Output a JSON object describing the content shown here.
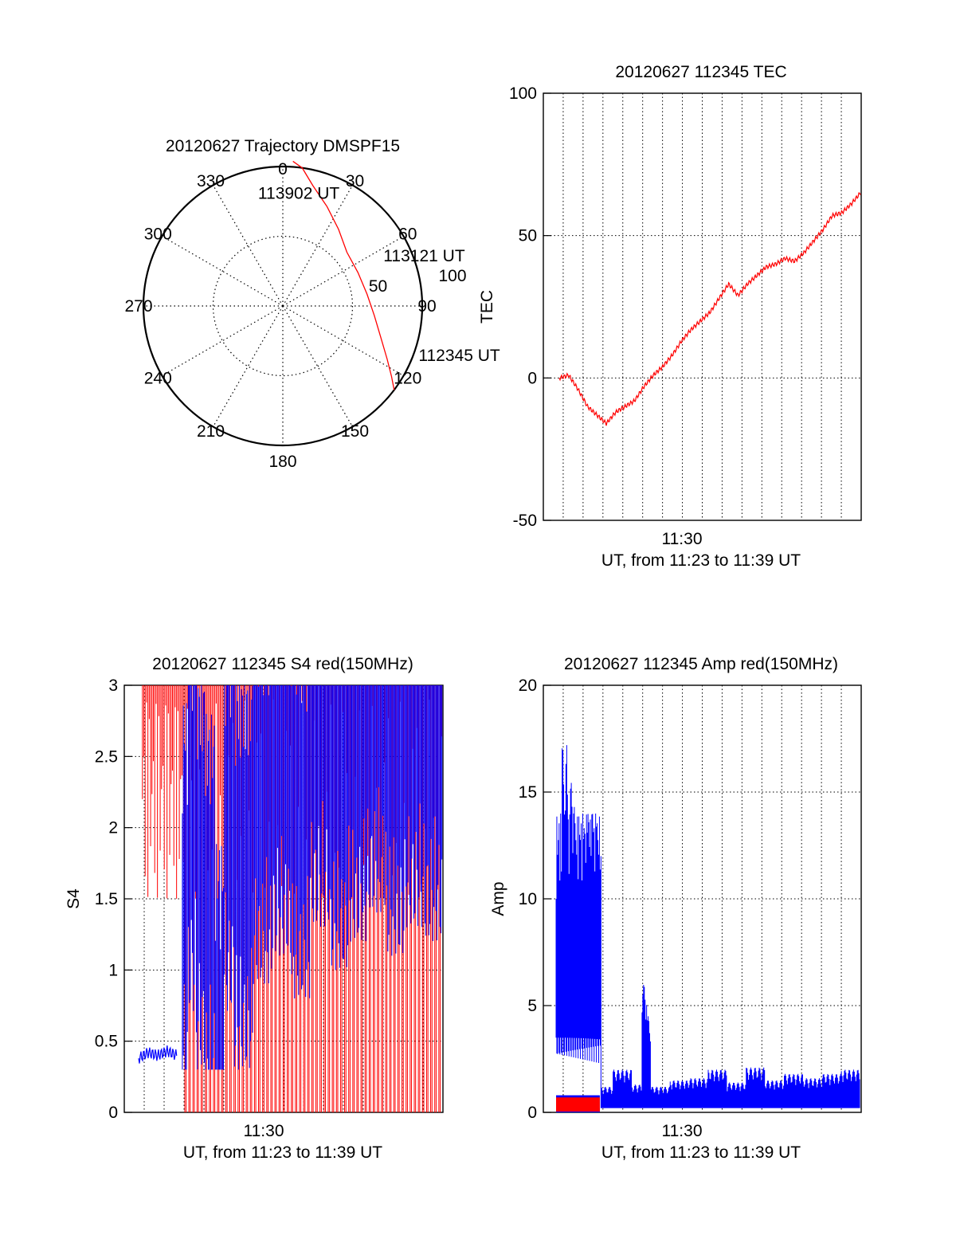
{
  "chart_data": [
    {
      "type": "polar",
      "title": "20120627 Trajectory DMSPF15",
      "angle_labels": [
        "0",
        "30",
        "60",
        "90",
        "120",
        "150",
        "180",
        "210",
        "240",
        "270",
        "300",
        "330"
      ],
      "radial_labels": [
        "50",
        "100"
      ],
      "radial_max": 100,
      "trajectory": {
        "color": "#ff0000",
        "points": [
          {
            "az": 127,
            "el_r": 100
          },
          {
            "az": 123,
            "el_r": 93
          },
          {
            "az": 117,
            "el_r": 84
          },
          {
            "az": 108,
            "el_r": 74
          },
          {
            "az": 96,
            "el_r": 66
          },
          {
            "az": 82,
            "el_r": 61
          },
          {
            "az": 66,
            "el_r": 59
          },
          {
            "az": 50,
            "el_r": 60
          },
          {
            "az": 36,
            "el_r": 68
          },
          {
            "az": 24,
            "el_r": 78
          },
          {
            "az": 14,
            "el_r": 89
          },
          {
            "az": 8,
            "el_r": 100
          },
          {
            "az": 4,
            "el_r": 104
          }
        ]
      },
      "annotations": [
        {
          "text": "112345 UT",
          "az": 112,
          "r": 105
        },
        {
          "text": "113121 UT",
          "az": 66,
          "r": 79
        },
        {
          "text": "113902 UT",
          "az": 347,
          "r": 79
        }
      ]
    },
    {
      "type": "line",
      "title": "20120627 112345 TEC",
      "ylabel": "TEC",
      "xlabel": "UT, from 11:23 to 11:39 UT",
      "xtick_label": "11:30",
      "ylim": [
        -50,
        100
      ],
      "yticks": [
        "100",
        "50",
        "0",
        "-50"
      ],
      "color": "#ff0000",
      "x": [
        0.0,
        0.5,
        1.0,
        1.5,
        2.0,
        2.5,
        3.0,
        3.5,
        4.0,
        4.5,
        5.0,
        5.5,
        6.0,
        6.5,
        7.0,
        7.5,
        8.0,
        8.5,
        9.0,
        9.5,
        10.0,
        10.5,
        11.0,
        11.5,
        12.0,
        12.5,
        13.0,
        13.5,
        14.0,
        14.5,
        15.0,
        15.5,
        16.0
      ],
      "values": [
        0,
        1,
        -4,
        -10,
        -13,
        -16,
        -12,
        -10,
        -8,
        -3,
        1,
        4,
        8,
        13,
        17,
        20,
        23,
        28,
        33,
        29,
        33,
        36,
        39,
        40,
        42,
        41,
        44,
        48,
        52,
        57,
        58,
        61,
        65
      ]
    },
    {
      "type": "line",
      "title": "20120627 112345 S4 red(150MHz)",
      "ylabel": "S4",
      "xlabel": "UT, from 11:23 to 11:39 UT",
      "xtick_label": "11:30",
      "ylim": [
        0,
        3
      ],
      "yticks": [
        "3",
        "2.5",
        "2",
        "1.5",
        "1",
        "0.5",
        "0"
      ],
      "series": [
        {
          "color": "#ff0000",
          "x": [
            0.0,
            0.5,
            1.0,
            1.5,
            2.0,
            2.3,
            3.0,
            4.0,
            5.0,
            6.0,
            7.0,
            8.0,
            9.0,
            10.0,
            11.0,
            12.0,
            13.0,
            14.0,
            15.0,
            16.0
          ],
          "values": [
            3,
            2.6,
            3,
            2.4,
            1.5,
            3,
            0,
            3,
            0,
            3,
            0,
            3,
            0,
            3,
            0,
            3,
            0,
            3,
            0,
            3
          ]
        },
        {
          "color": "#0000ff",
          "x": [
            0.0,
            0.5,
            1.0,
            1.5,
            2.0,
            2.3,
            2.6,
            3.0,
            3.5,
            4.0,
            4.5,
            5.0,
            6.0,
            7.0,
            8.0,
            9.0,
            10.0,
            11.0,
            12.0,
            13.0,
            14.0,
            15.0,
            16.0
          ],
          "values": [
            0.38,
            0.42,
            0.4,
            0.43,
            0.4,
            1.6,
            2.2,
            1.8,
            1.5,
            0.6,
            2.2,
            1.8,
            2.4,
            2.6,
            2.3,
            2.8,
            2.5,
            2.7,
            2.9,
            2.6,
            2.8,
            2.7,
            2.9
          ]
        }
      ]
    },
    {
      "type": "line",
      "title": "20120627 112345 Amp red(150MHz)",
      "ylabel": "Amp",
      "xlabel": "UT, from 11:23 to 11:39 UT",
      "xtick_label": "11:30",
      "ylim": [
        0,
        20
      ],
      "yticks": [
        "20",
        "15",
        "10",
        "5",
        "0"
      ],
      "series": [
        {
          "color": "#0000ff",
          "x": [
            0.0,
            0.3,
            0.6,
            1.0,
            1.5,
            2.0,
            2.3,
            2.4,
            3.0,
            4.0,
            4.5,
            4.8,
            5.0,
            6.0,
            7.0,
            8.0,
            9.0,
            10.0,
            11.0,
            12.0,
            13.0,
            14.0,
            15.0,
            16.0
          ],
          "values": [
            1.5,
            17.2,
            15.5,
            13.0,
            14.0,
            13.5,
            12.0,
            1.2,
            2.0,
            1.3,
            6.0,
            4.5,
            1.2,
            1.5,
            1.6,
            2.0,
            1.4,
            2.1,
            1.5,
            1.8,
            1.6,
            1.8,
            2.0,
            2.2
          ]
        },
        {
          "color": "#ff0000",
          "x": [
            0.0,
            0.5,
            1.0,
            1.5,
            2.0,
            2.3
          ],
          "values": [
            0.3,
            0.5,
            0.4,
            0.5,
            0.4,
            0.3
          ]
        }
      ]
    }
  ]
}
